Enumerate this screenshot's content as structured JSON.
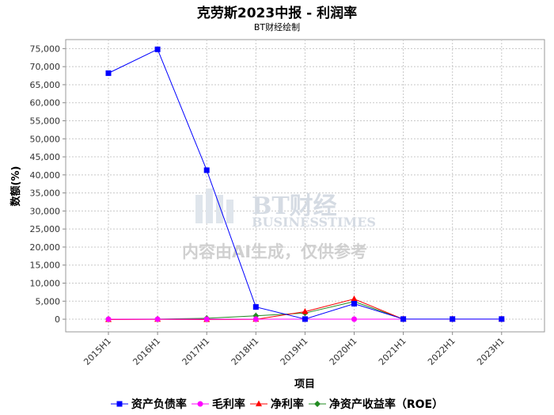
{
  "title": "克劳斯2023中报 - 利润率",
  "subtitle": "BT财经绘制",
  "watermark": {
    "logo_text": "BT财经",
    "logo_subtext": "BUSINESSTIMES",
    "notice": "内容由AI生成，仅供参考"
  },
  "chart_data": {
    "type": "line",
    "xlabel": "项目",
    "ylabel": "数额(%)",
    "ylim": [
      -3500,
      77500
    ],
    "yticks": [
      0,
      5000,
      10000,
      15000,
      20000,
      25000,
      30000,
      35000,
      40000,
      45000,
      50000,
      55000,
      60000,
      65000,
      70000,
      75000
    ],
    "ytick_labels": [
      "0",
      "5,000",
      "10,000",
      "15,000",
      "20,000",
      "25,000",
      "30,000",
      "35,000",
      "40,000",
      "45,000",
      "50,000",
      "55,000",
      "60,000",
      "65,000",
      "70,000",
      "75,000"
    ],
    "categories": [
      "2015H1",
      "2016H1",
      "2017H1",
      "2018H1",
      "2019H1",
      "2020H1",
      "2021H1",
      "2022H1",
      "2023H1"
    ],
    "grid": true,
    "legend_position": "bottom",
    "series": [
      {
        "name": "资产负债率",
        "color": "#0000ff",
        "marker": "square",
        "values": [
          68200,
          74800,
          41300,
          3400,
          40,
          4300,
          50,
          50,
          50
        ]
      },
      {
        "name": "毛利率",
        "color": "#ff00ff",
        "marker": "circle",
        "values": [
          20,
          20,
          20,
          20,
          20,
          20,
          20,
          20,
          20
        ]
      },
      {
        "name": "净利率",
        "color": "#ff0000",
        "marker": "triangle",
        "values": [
          -100,
          -50,
          -100,
          -50,
          2100,
          5600,
          0,
          0,
          0
        ]
      },
      {
        "name": "净资产收益率（ROE）",
        "color": "#228b22",
        "marker": "diamond",
        "values": [
          0,
          50,
          250,
          950,
          1700,
          4900,
          0,
          0,
          0
        ]
      }
    ]
  }
}
